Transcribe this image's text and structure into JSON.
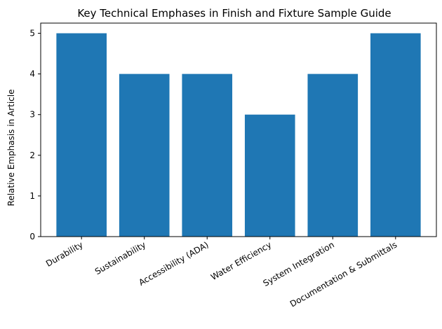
{
  "chart_data": {
    "type": "bar",
    "title": "Key Technical Emphases in Finish and Fixture Sample Guide",
    "xlabel": "",
    "ylabel": "Relative Emphasis in Article",
    "categories": [
      "Durability",
      "Sustainability",
      "Accessibility (ADA)",
      "Water Efficiency",
      "System Integration",
      "Documentation & Submittals"
    ],
    "values": [
      5,
      4,
      4,
      3,
      4,
      5
    ],
    "ylim": [
      0,
      5.25
    ],
    "yticks": [
      0,
      1,
      2,
      3,
      4,
      5
    ],
    "grid": false,
    "bar_color": "#1f77b4"
  }
}
